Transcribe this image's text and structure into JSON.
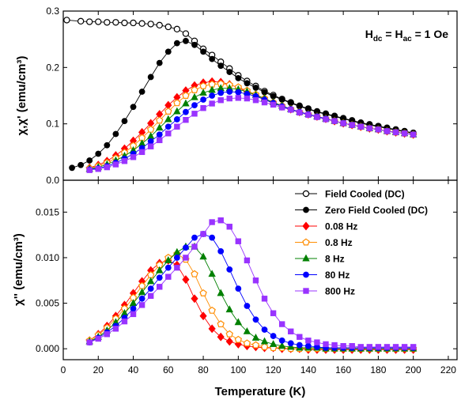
{
  "chart_data": [
    {
      "type": "scatter",
      "ylabel": "χ,χ' (emu/cm³)",
      "xlim": [
        0,
        225
      ],
      "ylim": [
        0,
        0.3
      ],
      "xticks": [
        0,
        20,
        40,
        60,
        80,
        100,
        120,
        140,
        160,
        180,
        200,
        220
      ],
      "yticks": [
        0.0,
        0.1,
        0.2,
        0.3
      ],
      "ytick_labels": [
        "0.0",
        "0.1",
        "0.2",
        "0.3"
      ],
      "annotation": "Hdc = Hac = 1 Oe",
      "series": [
        {
          "name": "Field Cooled (DC)",
          "color": "#000000",
          "marker": "circle-open",
          "x": [
            2,
            10,
            15,
            20,
            25,
            30,
            35,
            40,
            45,
            50,
            55,
            60,
            65,
            70,
            75,
            80,
            85,
            90,
            95,
            100,
            105,
            110,
            115,
            120,
            125,
            130,
            135,
            140,
            145,
            150,
            155,
            160,
            165,
            170,
            175,
            180,
            185,
            190,
            195,
            200
          ],
          "y": [
            0.284,
            0.282,
            0.281,
            0.281,
            0.28,
            0.28,
            0.279,
            0.279,
            0.278,
            0.277,
            0.275,
            0.272,
            0.268,
            0.26,
            0.247,
            0.233,
            0.222,
            0.21,
            0.198,
            0.186,
            0.176,
            0.167,
            0.158,
            0.151,
            0.144,
            0.138,
            0.132,
            0.127,
            0.122,
            0.118,
            0.114,
            0.11,
            0.106,
            0.102,
            0.099,
            0.096,
            0.093,
            0.09,
            0.087,
            0.084
          ]
        },
        {
          "name": "Zero Field Cooled (DC)",
          "color": "#000000",
          "marker": "circle-filled",
          "x": [
            5,
            10,
            15,
            20,
            25,
            30,
            35,
            40,
            45,
            50,
            55,
            60,
            65,
            70,
            75,
            80,
            85,
            90,
            95,
            100,
            105,
            110,
            115,
            120,
            125,
            130,
            135,
            140,
            145,
            150,
            155,
            160,
            165,
            170,
            175,
            180,
            185,
            190,
            195,
            200
          ],
          "y": [
            0.022,
            0.027,
            0.035,
            0.047,
            0.062,
            0.082,
            0.105,
            0.13,
            0.157,
            0.183,
            0.208,
            0.228,
            0.243,
            0.247,
            0.24,
            0.228,
            0.215,
            0.203,
            0.192,
            0.181,
            0.172,
            0.164,
            0.156,
            0.149,
            0.143,
            0.137,
            0.131,
            0.126,
            0.121,
            0.117,
            0.113,
            0.109,
            0.105,
            0.101,
            0.098,
            0.095,
            0.092,
            0.089,
            0.086,
            0.083
          ]
        },
        {
          "name": "0.08 Hz",
          "color": "#ff0000",
          "marker": "diamond",
          "x": [
            15,
            20,
            25,
            30,
            35,
            40,
            45,
            50,
            55,
            60,
            65,
            70,
            75,
            80,
            85,
            90,
            95,
            100,
            105,
            110,
            115,
            120,
            125,
            130,
            135,
            140,
            145,
            150,
            155,
            160,
            165,
            170,
            175,
            180,
            185,
            190,
            195,
            200
          ],
          "y": [
            0.022,
            0.027,
            0.034,
            0.044,
            0.056,
            0.07,
            0.085,
            0.101,
            0.117,
            0.133,
            0.147,
            0.159,
            0.168,
            0.173,
            0.175,
            0.174,
            0.17,
            0.164,
            0.157,
            0.15,
            0.143,
            0.137,
            0.131,
            0.126,
            0.121,
            0.117,
            0.113,
            0.109,
            0.105,
            0.101,
            0.098,
            0.095,
            0.092,
            0.09,
            0.087,
            0.085,
            0.083,
            0.081
          ]
        },
        {
          "name": "0.8 Hz",
          "color": "#ff8c00",
          "marker": "pentagon-open",
          "x": [
            15,
            20,
            25,
            30,
            35,
            40,
            45,
            50,
            55,
            60,
            65,
            70,
            75,
            80,
            85,
            90,
            95,
            100,
            105,
            110,
            115,
            120,
            125,
            130,
            135,
            140,
            145,
            150,
            155,
            160,
            165,
            170,
            175,
            180,
            185,
            190,
            195,
            200
          ],
          "y": [
            0.021,
            0.025,
            0.031,
            0.039,
            0.049,
            0.061,
            0.075,
            0.09,
            0.106,
            0.122,
            0.137,
            0.15,
            0.16,
            0.167,
            0.17,
            0.171,
            0.169,
            0.165,
            0.159,
            0.152,
            0.145,
            0.138,
            0.132,
            0.126,
            0.121,
            0.117,
            0.113,
            0.109,
            0.105,
            0.101,
            0.098,
            0.095,
            0.092,
            0.09,
            0.087,
            0.085,
            0.083,
            0.081
          ]
        },
        {
          "name": "8 Hz",
          "color": "#008000",
          "marker": "triangle",
          "x": [
            15,
            20,
            25,
            30,
            35,
            40,
            45,
            50,
            55,
            60,
            65,
            70,
            75,
            80,
            85,
            90,
            95,
            100,
            105,
            110,
            115,
            120,
            125,
            130,
            135,
            140,
            145,
            150,
            155,
            160,
            165,
            170,
            175,
            180,
            185,
            190,
            195,
            200
          ],
          "y": [
            0.02,
            0.023,
            0.028,
            0.035,
            0.043,
            0.053,
            0.065,
            0.078,
            0.093,
            0.108,
            0.122,
            0.136,
            0.147,
            0.155,
            0.16,
            0.163,
            0.163,
            0.161,
            0.157,
            0.151,
            0.145,
            0.138,
            0.132,
            0.126,
            0.121,
            0.117,
            0.113,
            0.109,
            0.105,
            0.101,
            0.098,
            0.095,
            0.092,
            0.09,
            0.087,
            0.085,
            0.083,
            0.081
          ]
        },
        {
          "name": "80 Hz",
          "color": "#0000ff",
          "marker": "circle-filled",
          "x": [
            15,
            20,
            25,
            30,
            35,
            40,
            45,
            50,
            55,
            60,
            65,
            70,
            75,
            80,
            85,
            90,
            95,
            100,
            105,
            110,
            115,
            120,
            125,
            130,
            135,
            140,
            145,
            150,
            155,
            160,
            165,
            170,
            175,
            180,
            185,
            190,
            195,
            200
          ],
          "y": [
            0.019,
            0.021,
            0.025,
            0.031,
            0.038,
            0.047,
            0.057,
            0.069,
            0.081,
            0.095,
            0.108,
            0.121,
            0.133,
            0.143,
            0.15,
            0.155,
            0.157,
            0.156,
            0.153,
            0.149,
            0.143,
            0.137,
            0.131,
            0.126,
            0.121,
            0.117,
            0.113,
            0.109,
            0.105,
            0.101,
            0.098,
            0.095,
            0.092,
            0.09,
            0.087,
            0.085,
            0.083,
            0.081
          ]
        },
        {
          "name": "800 Hz",
          "color": "#9933ff",
          "marker": "square",
          "x": [
            15,
            20,
            25,
            30,
            35,
            40,
            45,
            50,
            55,
            60,
            65,
            70,
            75,
            80,
            85,
            90,
            95,
            100,
            105,
            110,
            115,
            120,
            125,
            130,
            135,
            140,
            145,
            150,
            155,
            160,
            165,
            170,
            175,
            180,
            185,
            190,
            195,
            200
          ],
          "y": [
            0.018,
            0.02,
            0.023,
            0.028,
            0.034,
            0.041,
            0.05,
            0.06,
            0.071,
            0.083,
            0.095,
            0.107,
            0.118,
            0.128,
            0.136,
            0.142,
            0.145,
            0.146,
            0.145,
            0.142,
            0.138,
            0.134,
            0.129,
            0.125,
            0.12,
            0.116,
            0.112,
            0.108,
            0.105,
            0.101,
            0.098,
            0.095,
            0.092,
            0.09,
            0.087,
            0.085,
            0.083,
            0.081
          ]
        }
      ]
    },
    {
      "type": "scatter",
      "xlabel": "Temperature (K)",
      "ylabel": "χ'' (emu/cm³)",
      "xlim": [
        0,
        225
      ],
      "ylim": [
        -0.0012,
        0.0185
      ],
      "xticks": [
        0,
        20,
        40,
        60,
        80,
        100,
        120,
        140,
        160,
        180,
        200,
        220
      ],
      "yticks": [
        0.0,
        0.005,
        0.01,
        0.015
      ],
      "ytick_labels": [
        "0.000",
        "0.005",
        "0.010",
        "0.015"
      ],
      "legend_position": "top-right",
      "series": [
        {
          "name": "0.08 Hz",
          "color": "#ff0000",
          "marker": "diamond",
          "x": [
            15,
            20,
            25,
            30,
            35,
            40,
            45,
            50,
            55,
            60,
            65,
            70,
            75,
            80,
            85,
            90,
            95,
            100,
            105,
            110,
            115,
            120,
            125,
            130,
            135,
            140,
            145,
            150,
            155,
            160,
            165,
            170,
            175,
            180,
            185,
            190,
            195,
            200
          ],
          "y": [
            0.0009,
            0.0016,
            0.0025,
            0.0036,
            0.0048,
            0.0061,
            0.0074,
            0.0086,
            0.0094,
            0.0097,
            0.0092,
            0.0076,
            0.0055,
            0.0036,
            0.0022,
            0.0013,
            0.0008,
            0.0005,
            0.0003,
            0.0002,
            0.0001,
            0.0001,
            0.0,
            0.0,
            0.0,
            -0.0001,
            -0.0001,
            -0.0001,
            -0.0001,
            -0.0001,
            -0.0001,
            -0.0001,
            -0.0001,
            -0.0001,
            -0.0001,
            -0.0001,
            -0.0001,
            -0.0001
          ]
        },
        {
          "name": "0.8 Hz",
          "color": "#ff8c00",
          "marker": "pentagon-open",
          "x": [
            15,
            20,
            25,
            30,
            35,
            40,
            45,
            50,
            55,
            60,
            65,
            70,
            75,
            80,
            85,
            90,
            95,
            100,
            105,
            110,
            115,
            120,
            125,
            130,
            135,
            140,
            145,
            150,
            155,
            160,
            165,
            170,
            175,
            180,
            185,
            190,
            195,
            200
          ],
          "y": [
            0.0009,
            0.0015,
            0.0023,
            0.0033,
            0.0044,
            0.0056,
            0.0069,
            0.0081,
            0.0092,
            0.01,
            0.0104,
            0.0098,
            0.0082,
            0.0061,
            0.0042,
            0.0027,
            0.0016,
            0.001,
            0.0006,
            0.0004,
            0.0002,
            0.0001,
            0.0001,
            0.0,
            0.0,
            0.0,
            0.0,
            0.0,
            0.0,
            0.0,
            0.0,
            0.0,
            0.0,
            0.0,
            0.0,
            0.0,
            0.0,
            0.0
          ]
        },
        {
          "name": "8 Hz",
          "color": "#008000",
          "marker": "triangle",
          "x": [
            15,
            20,
            25,
            30,
            35,
            40,
            45,
            50,
            55,
            60,
            65,
            70,
            75,
            80,
            85,
            90,
            95,
            100,
            105,
            110,
            115,
            120,
            125,
            130,
            135,
            140,
            145,
            150,
            155,
            160,
            165,
            170,
            175,
            180,
            185,
            190,
            195,
            200
          ],
          "y": [
            0.0008,
            0.0013,
            0.002,
            0.0029,
            0.0039,
            0.005,
            0.0062,
            0.0074,
            0.0086,
            0.0097,
            0.0106,
            0.0112,
            0.0112,
            0.0101,
            0.0082,
            0.0061,
            0.0043,
            0.0029,
            0.0019,
            0.0012,
            0.0008,
            0.0005,
            0.0003,
            0.0002,
            0.0001,
            0.0001,
            0.0001,
            0.0,
            0.0,
            0.0,
            0.0,
            0.0,
            0.0,
            0.0,
            0.0,
            0.0,
            0.0,
            0.0
          ]
        },
        {
          "name": "80 Hz",
          "color": "#0000ff",
          "marker": "circle-filled",
          "x": [
            15,
            20,
            25,
            30,
            35,
            40,
            45,
            50,
            55,
            60,
            65,
            70,
            75,
            80,
            85,
            90,
            95,
            100,
            105,
            110,
            115,
            120,
            125,
            130,
            135,
            140,
            145,
            150,
            155,
            160,
            165,
            170,
            175,
            180,
            185,
            190,
            195,
            200
          ],
          "y": [
            0.0007,
            0.0012,
            0.0018,
            0.0025,
            0.0034,
            0.0044,
            0.0055,
            0.0066,
            0.0078,
            0.0089,
            0.01,
            0.0111,
            0.0122,
            0.0126,
            0.0122,
            0.0107,
            0.0087,
            0.0066,
            0.0047,
            0.0032,
            0.0021,
            0.0014,
            0.0009,
            0.0006,
            0.0004,
            0.0003,
            0.0002,
            0.0001,
            0.0001,
            0.0001,
            0.0001,
            0.0001,
            0.0001,
            0.0001,
            0.0001,
            0.0001,
            0.0001,
            0.0001
          ]
        },
        {
          "name": "800 Hz",
          "color": "#9933ff",
          "marker": "square",
          "x": [
            15,
            20,
            25,
            30,
            35,
            40,
            45,
            50,
            55,
            60,
            65,
            70,
            75,
            80,
            85,
            90,
            95,
            100,
            105,
            110,
            115,
            120,
            125,
            130,
            135,
            140,
            145,
            150,
            155,
            160,
            165,
            170,
            175,
            180,
            185,
            190,
            195,
            200
          ],
          "y": [
            0.0007,
            0.0011,
            0.0016,
            0.0022,
            0.003,
            0.0038,
            0.0048,
            0.0058,
            0.0068,
            0.0079,
            0.0089,
            0.01,
            0.0112,
            0.0126,
            0.0139,
            0.0141,
            0.0134,
            0.0118,
            0.0097,
            0.0075,
            0.0055,
            0.0039,
            0.0027,
            0.0019,
            0.0013,
            0.0009,
            0.0007,
            0.0005,
            0.0004,
            0.0003,
            0.0003,
            0.0002,
            0.0002,
            0.0002,
            0.0002,
            0.0002,
            0.0002,
            0.0002
          ]
        }
      ]
    }
  ]
}
